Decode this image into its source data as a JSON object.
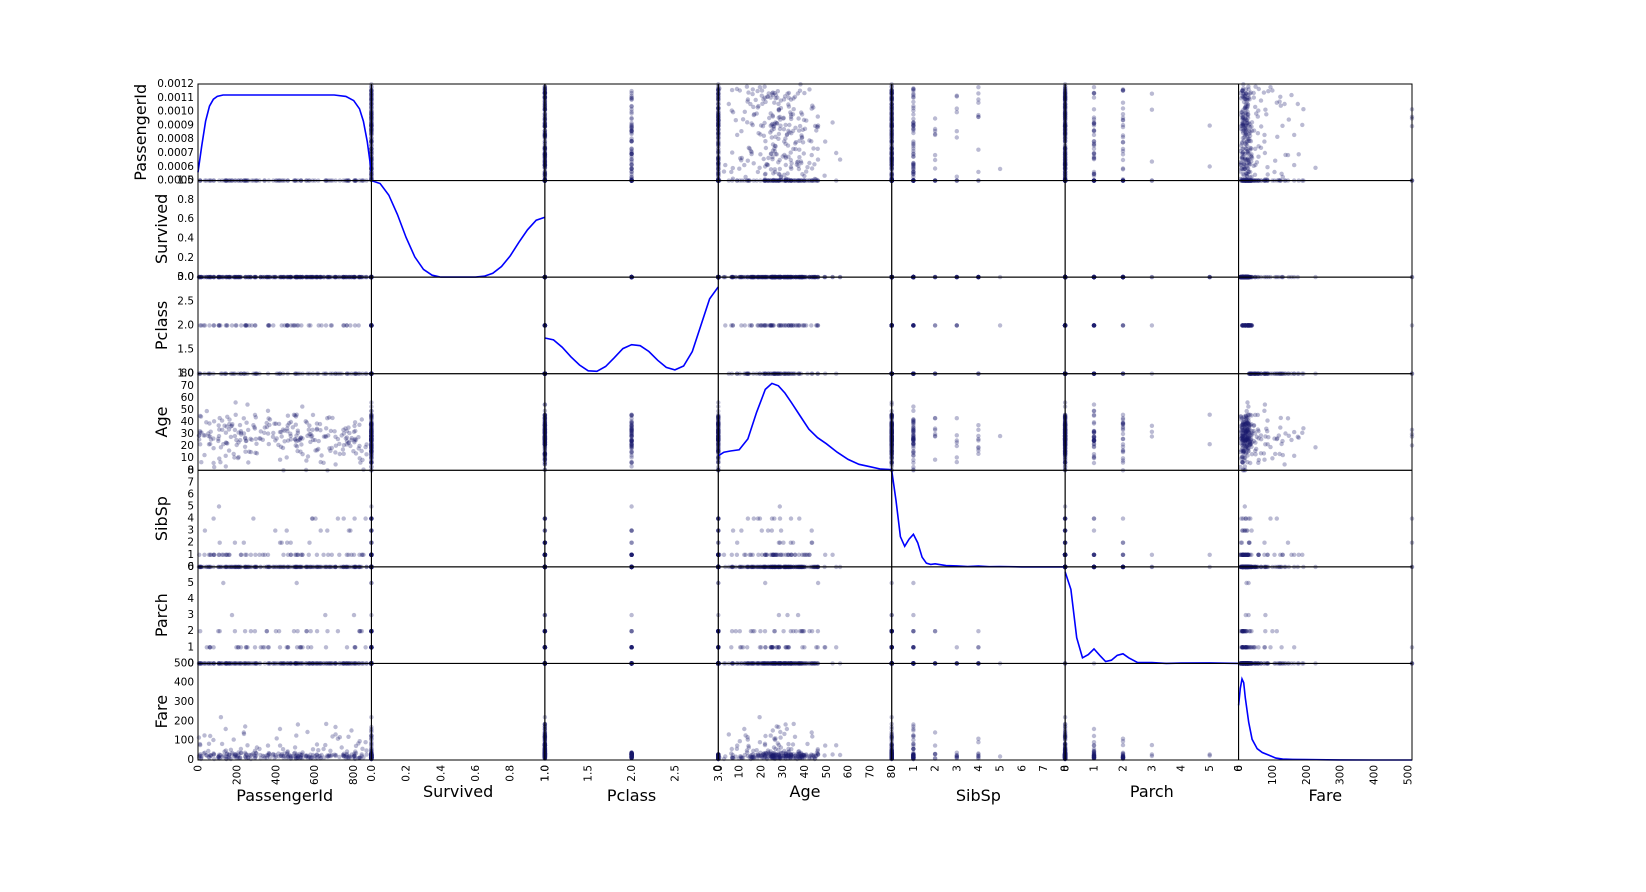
{
  "chart_data": {
    "type": "scatter",
    "subtype": "scatter_matrix",
    "diagonal": "kde",
    "variables": [
      "PassengerId",
      "Survived",
      "Pclass",
      "Age",
      "SibSp",
      "Parch",
      "Fare"
    ],
    "colors": {
      "points": "#1a1a6e",
      "kde_line": "#0000ff",
      "axes": "#000000"
    },
    "point_alpha": 0.3,
    "x_ticks": {
      "PassengerId": [
        "0",
        "200",
        "400",
        "600",
        "800"
      ],
      "Survived": [
        "0.0",
        "0.2",
        "0.4",
        "0.6",
        "0.8",
        "1.0"
      ],
      "Pclass": [
        "1.0",
        "1.5",
        "2.0",
        "2.5",
        "3.0"
      ],
      "Age": [
        "0",
        "10",
        "20",
        "30",
        "40",
        "50",
        "60",
        "70",
        "80"
      ],
      "SibSp": [
        "0",
        "1",
        "2",
        "3",
        "4",
        "5",
        "6",
        "7",
        "8"
      ],
      "Parch": [
        "0",
        "1",
        "2",
        "3",
        "4",
        "5",
        "6"
      ],
      "Fare": [
        "0",
        "100",
        "200",
        "300",
        "400",
        "500"
      ]
    },
    "y_ticks": {
      "PassengerId": [
        "0.0005",
        "0.0006",
        "0.0007",
        "0.0008",
        "0.0009",
        "0.0010",
        "0.0011",
        "0.0012"
      ],
      "Survived": [
        "0.0",
        "0.2",
        "0.4",
        "0.6",
        "0.8",
        "1.0"
      ],
      "Pclass": [
        "1.0",
        "1.5",
        "2.0",
        "2.5",
        "3.0"
      ],
      "Age": [
        "0",
        "10",
        "20",
        "30",
        "40",
        "50",
        "60",
        "70",
        "80"
      ],
      "SibSp": [
        "0",
        "1",
        "2",
        "3",
        "4",
        "5",
        "6",
        "7",
        "8"
      ],
      "Parch": [
        "0",
        "1",
        "2",
        "3",
        "4",
        "5",
        "6"
      ],
      "Fare": [
        "0",
        "100",
        "200",
        "300",
        "400",
        "500"
      ]
    },
    "ranges": {
      "PassengerId": [
        1,
        891
      ],
      "Survived": [
        0,
        1
      ],
      "Pclass": [
        1,
        3
      ],
      "Age": [
        0.42,
        80
      ],
      "SibSp": [
        0,
        8
      ],
      "Parch": [
        0,
        6
      ],
      "Fare": [
        0,
        512
      ]
    },
    "kde": {
      "PassengerId": {
        "ylim": [
          0.0005,
          0.0012
        ],
        "x": [
          1,
          20,
          40,
          60,
          80,
          100,
          130,
          200,
          300,
          400,
          500,
          600,
          700,
          760,
          800,
          830,
          850,
          870,
          891
        ],
        "y": [
          0.00056,
          0.00075,
          0.00093,
          0.00104,
          0.00109,
          0.00111,
          0.00112,
          0.00112,
          0.00112,
          0.00112,
          0.00112,
          0.00112,
          0.00112,
          0.00111,
          0.00108,
          0.00102,
          0.00093,
          0.00078,
          0.00056
        ]
      },
      "Survived": {
        "ylim": [
          0,
          1
        ],
        "x": [
          0,
          0.05,
          0.1,
          0.15,
          0.2,
          0.25,
          0.3,
          0.35,
          0.4,
          0.45,
          0.5,
          0.55,
          0.6,
          0.65,
          0.7,
          0.75,
          0.8,
          0.85,
          0.9,
          0.95,
          1.0
        ],
        "y": [
          1.0,
          0.97,
          0.85,
          0.65,
          0.41,
          0.21,
          0.08,
          0.02,
          0.0,
          0.0,
          0.0,
          0.0,
          0.0,
          0.01,
          0.04,
          0.11,
          0.22,
          0.36,
          0.49,
          0.59,
          0.62
        ]
      },
      "Pclass": {
        "ylim": [
          1,
          3
        ],
        "x": [
          1.0,
          1.1,
          1.2,
          1.3,
          1.4,
          1.5,
          1.6,
          1.7,
          1.8,
          1.9,
          2.0,
          2.1,
          2.2,
          2.3,
          2.4,
          2.5,
          2.6,
          2.7,
          2.8,
          2.9,
          3.0
        ],
        "y": [
          1.74,
          1.7,
          1.55,
          1.35,
          1.18,
          1.06,
          1.05,
          1.15,
          1.33,
          1.52,
          1.6,
          1.58,
          1.46,
          1.28,
          1.13,
          1.08,
          1.16,
          1.46,
          2.0,
          2.55,
          2.8
        ]
      },
      "Age": {
        "ylim": [
          0,
          80
        ],
        "x": [
          0.42,
          3,
          6,
          10,
          14,
          18,
          22,
          25,
          28,
          31,
          34,
          38,
          42,
          46,
          50,
          55,
          60,
          65,
          70,
          75,
          80
        ],
        "y": [
          12,
          15,
          16,
          17,
          26,
          48,
          67,
          72,
          70,
          64,
          56,
          45,
          34,
          27,
          22,
          15,
          9,
          5,
          3,
          1,
          0.5
        ]
      },
      "SibSp": {
        "ylim": [
          0,
          8
        ],
        "x": [
          0,
          0.2,
          0.4,
          0.6,
          0.8,
          1.0,
          1.2,
          1.4,
          1.6,
          1.8,
          2.0,
          2.5,
          3.0,
          3.5,
          4.0,
          4.5,
          5.0,
          6.0,
          7.0,
          8.0
        ],
        "y": [
          8.0,
          5.5,
          2.5,
          1.7,
          2.3,
          2.7,
          2.0,
          0.8,
          0.3,
          0.2,
          0.25,
          0.1,
          0.08,
          0.03,
          0.06,
          0.01,
          0.02,
          0.0,
          0.0,
          0.0
        ]
      },
      "Parch": {
        "ylim": [
          0,
          6
        ],
        "x": [
          0,
          0.2,
          0.4,
          0.6,
          0.8,
          1.0,
          1.2,
          1.4,
          1.6,
          1.8,
          2.0,
          2.2,
          2.5,
          3.0,
          3.5,
          4.0,
          5.0,
          6.0
        ],
        "y": [
          5.7,
          4.6,
          1.6,
          0.35,
          0.55,
          0.9,
          0.5,
          0.12,
          0.2,
          0.5,
          0.6,
          0.35,
          0.06,
          0.05,
          0.0,
          0.02,
          0.03,
          0.0
        ]
      },
      "Fare": {
        "ylim": [
          0,
          512
        ],
        "x": [
          0,
          5,
          10,
          15,
          20,
          30,
          40,
          55,
          70,
          90,
          110,
          130,
          160,
          200,
          260,
          300,
          400,
          512
        ],
        "y": [
          290,
          380,
          430,
          410,
          330,
          200,
          110,
          60,
          40,
          25,
          10,
          5,
          3,
          2,
          1,
          0.5,
          0,
          0
        ]
      }
    }
  }
}
